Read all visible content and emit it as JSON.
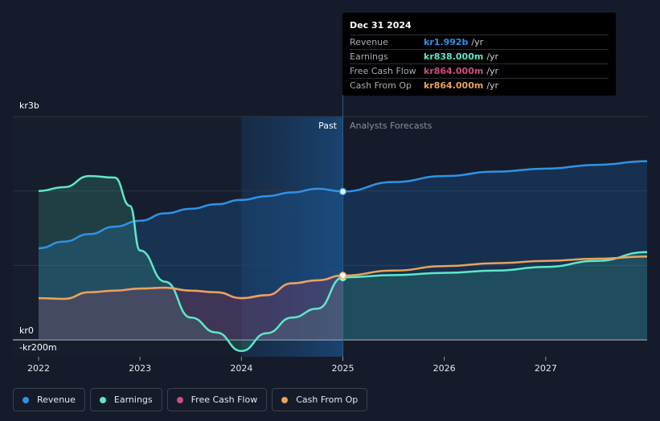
{
  "chart_data": {
    "type": "line",
    "title": "",
    "y_unit_label_top": "kr3b",
    "y_unit_label_zero": "kr0",
    "y_unit_label_bottom": "-kr200m",
    "ylim": [
      -200,
      3000
    ],
    "xlim": [
      2022,
      2028
    ],
    "x_ticks": [
      "2022",
      "2023",
      "2024",
      "2025",
      "2026",
      "2027"
    ],
    "x_tick_values": [
      2022,
      2023,
      2024,
      2025,
      2026,
      2027
    ],
    "past_label": "Past",
    "forecast_label": "Analysts Forecasts",
    "divider_x": 2025.0,
    "highlight_start_x": 2024.0,
    "series": [
      {
        "name": "Revenue",
        "color": "#2e93e6",
        "x": [
          2022,
          2022.25,
          2022.5,
          2022.75,
          2023,
          2023.25,
          2023.5,
          2023.75,
          2024,
          2024.25,
          2024.5,
          2024.75,
          2025,
          2025.5,
          2026,
          2026.5,
          2027,
          2027.5,
          2028
        ],
        "values": [
          1230,
          1320,
          1420,
          1520,
          1600,
          1700,
          1760,
          1820,
          1880,
          1930,
          1980,
          2030,
          1992,
          2120,
          2200,
          2260,
          2300,
          2350,
          2400
        ]
      },
      {
        "name": "Earnings",
        "color": "#5ee8c8",
        "x": [
          2022,
          2022.25,
          2022.5,
          2022.75,
          2022.9,
          2023.0,
          2023.25,
          2023.5,
          2023.75,
          2024,
          2024.25,
          2024.5,
          2024.75,
          2025,
          2025.5,
          2026,
          2026.5,
          2027,
          2027.5,
          2028
        ],
        "values": [
          2000,
          2050,
          2200,
          2180,
          1800,
          1200,
          780,
          300,
          100,
          -150,
          90,
          300,
          420,
          838,
          870,
          900,
          930,
          980,
          1060,
          1180
        ]
      },
      {
        "name": "Free Cash Flow",
        "color": "#cc4d86",
        "x": [
          2022,
          2022.25,
          2022.5,
          2022.75,
          2023,
          2023.25,
          2023.5,
          2023.75,
          2024,
          2024.25,
          2024.5,
          2024.75,
          2025
        ],
        "values": [
          560,
          550,
          640,
          660,
          690,
          700,
          660,
          640,
          560,
          600,
          760,
          800,
          864
        ]
      },
      {
        "name": "Cash From Op",
        "color": "#e9a35d",
        "x": [
          2022,
          2022.25,
          2022.5,
          2022.75,
          2023,
          2023.25,
          2023.5,
          2023.75,
          2024,
          2024.25,
          2024.5,
          2024.75,
          2025,
          2025.5,
          2026,
          2026.5,
          2027,
          2027.5,
          2028
        ],
        "values": [
          560,
          550,
          640,
          660,
          690,
          700,
          660,
          640,
          560,
          600,
          760,
          800,
          864,
          930,
          990,
          1030,
          1060,
          1090,
          1120
        ]
      }
    ]
  },
  "tooltip": {
    "date": "Dec 31 2024",
    "rows": [
      {
        "label": "Revenue",
        "value": "kr1.992b",
        "unit": "/yr",
        "color": "#2e93e6"
      },
      {
        "label": "Earnings",
        "value": "kr838.000m",
        "unit": "/yr",
        "color": "#5ee8c8"
      },
      {
        "label": "Free Cash Flow",
        "value": "kr864.000m",
        "unit": "/yr",
        "color": "#cc4d86"
      },
      {
        "label": "Cash From Op",
        "value": "kr864.000m",
        "unit": "/yr",
        "color": "#e9a35d"
      }
    ]
  },
  "legend": [
    {
      "label": "Revenue",
      "color": "#2e93e6"
    },
    {
      "label": "Earnings",
      "color": "#5ee8c8"
    },
    {
      "label": "Free Cash Flow",
      "color": "#cc4d86"
    },
    {
      "label": "Cash From Op",
      "color": "#e9a35d"
    }
  ]
}
